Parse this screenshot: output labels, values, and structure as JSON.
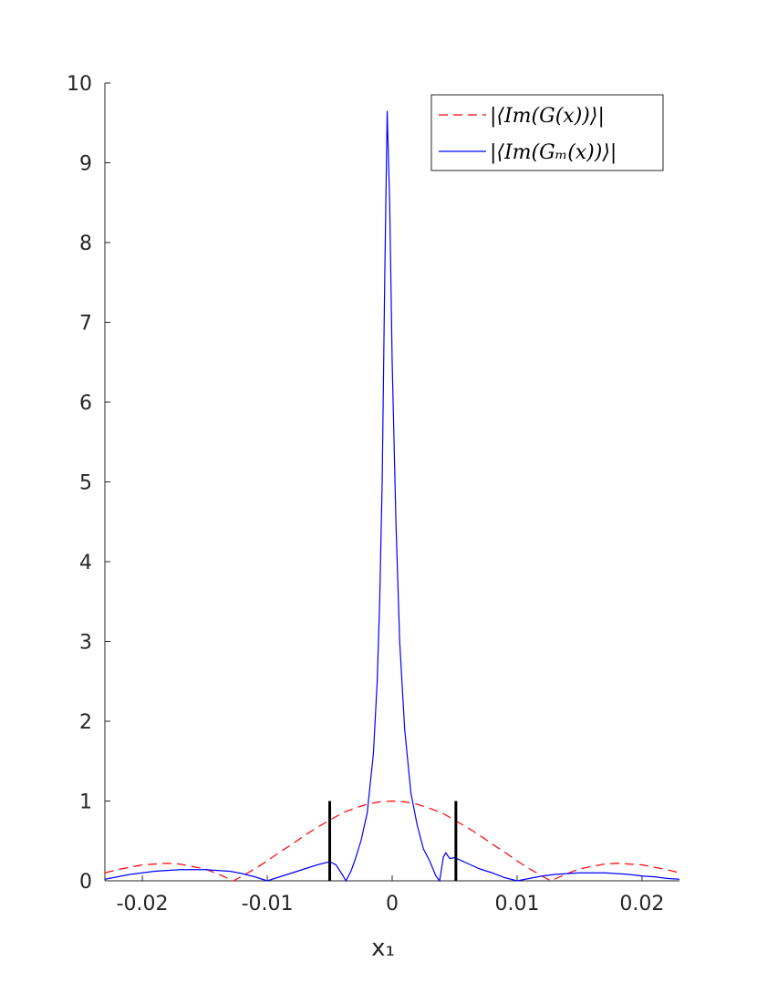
{
  "chart_data": {
    "type": "line",
    "x_label": "x₁",
    "xlim": [
      -0.023,
      0.023
    ],
    "xticks": [
      -0.02,
      -0.01,
      0,
      0.01,
      0.02
    ],
    "ylim": [
      0,
      10
    ],
    "yticks": [
      0,
      1,
      2,
      3,
      4,
      5,
      6,
      7,
      8,
      9,
      10
    ],
    "legend": "top-right",
    "series": [
      {
        "name": "|⟨Im(G(x))⟩|",
        "color": "#ff0000",
        "dash": true,
        "x": [
          -0.023,
          -0.022,
          -0.021,
          -0.02,
          -0.019,
          -0.018,
          -0.017,
          -0.016,
          -0.015,
          -0.014,
          -0.013,
          -0.0127,
          -0.012,
          -0.011,
          -0.01,
          -0.009,
          -0.008,
          -0.007,
          -0.006,
          -0.005,
          -0.004,
          -0.003,
          -0.002,
          -0.001,
          0,
          0.001,
          0.002,
          0.003,
          0.004,
          0.005,
          0.006,
          0.007,
          0.008,
          0.009,
          0.01,
          0.011,
          0.012,
          0.0127,
          0.013,
          0.014,
          0.015,
          0.016,
          0.017,
          0.018,
          0.019,
          0.02,
          0.021,
          0.022,
          0.023
        ],
        "values": [
          0.1,
          0.14,
          0.17,
          0.2,
          0.21,
          0.22,
          0.21,
          0.18,
          0.15,
          0.09,
          0.02,
          0,
          0.06,
          0.15,
          0.25,
          0.36,
          0.46,
          0.57,
          0.67,
          0.76,
          0.85,
          0.91,
          0.96,
          0.99,
          1,
          0.99,
          0.96,
          0.91,
          0.85,
          0.76,
          0.67,
          0.57,
          0.46,
          0.36,
          0.25,
          0.15,
          0.06,
          0,
          0.02,
          0.09,
          0.15,
          0.18,
          0.21,
          0.22,
          0.21,
          0.2,
          0.17,
          0.14,
          0.1
        ]
      },
      {
        "name": "|⟨Im(Gₘ(x))⟩|",
        "color": "#0000ff",
        "dash": false,
        "x": [
          -0.023,
          -0.022,
          -0.021,
          -0.02,
          -0.019,
          -0.018,
          -0.017,
          -0.016,
          -0.015,
          -0.014,
          -0.013,
          -0.012,
          -0.011,
          -0.01,
          -0.009,
          -0.008,
          -0.007,
          -0.006,
          -0.005,
          -0.0045,
          -0.004,
          -0.0037,
          -0.0033,
          -0.003,
          -0.0025,
          -0.002,
          -0.0015,
          -0.0012,
          -0.001,
          -0.0008,
          -0.0006,
          -0.0004,
          -0.0002,
          0,
          0.0003,
          0.0006,
          0.001,
          0.0015,
          0.002,
          0.0025,
          0.003,
          0.0035,
          0.0038,
          0.0041,
          0.0043,
          0.0046,
          0.005,
          0.006,
          0.007,
          0.008,
          0.009,
          0.01,
          0.011,
          0.012,
          0.013,
          0.014,
          0.015,
          0.016,
          0.017,
          0.018,
          0.019,
          0.02,
          0.021,
          0.022,
          0.023
        ],
        "values": [
          0.02,
          0.05,
          0.08,
          0.1,
          0.12,
          0.13,
          0.14,
          0.14,
          0.14,
          0.13,
          0.12,
          0.09,
          0.05,
          0,
          0.05,
          0.1,
          0.15,
          0.2,
          0.24,
          0.2,
          0.08,
          0,
          0.12,
          0.25,
          0.5,
          0.85,
          1.6,
          2.5,
          3.5,
          5,
          7.5,
          9.65,
          8.5,
          6.5,
          4.5,
          3,
          1.9,
          1.1,
          0.7,
          0.4,
          0.25,
          0.06,
          0,
          0.3,
          0.35,
          0.28,
          0.29,
          0.22,
          0.15,
          0.1,
          0.04,
          0,
          0.03,
          0.06,
          0.08,
          0.09,
          0.1,
          0.1,
          0.1,
          0.09,
          0.08,
          0.06,
          0.05,
          0.03,
          0.02
        ]
      }
    ],
    "vlines": {
      "x": [
        -0.005,
        0.0051
      ],
      "values": [
        1,
        1
      ],
      "color": "#000000"
    }
  }
}
